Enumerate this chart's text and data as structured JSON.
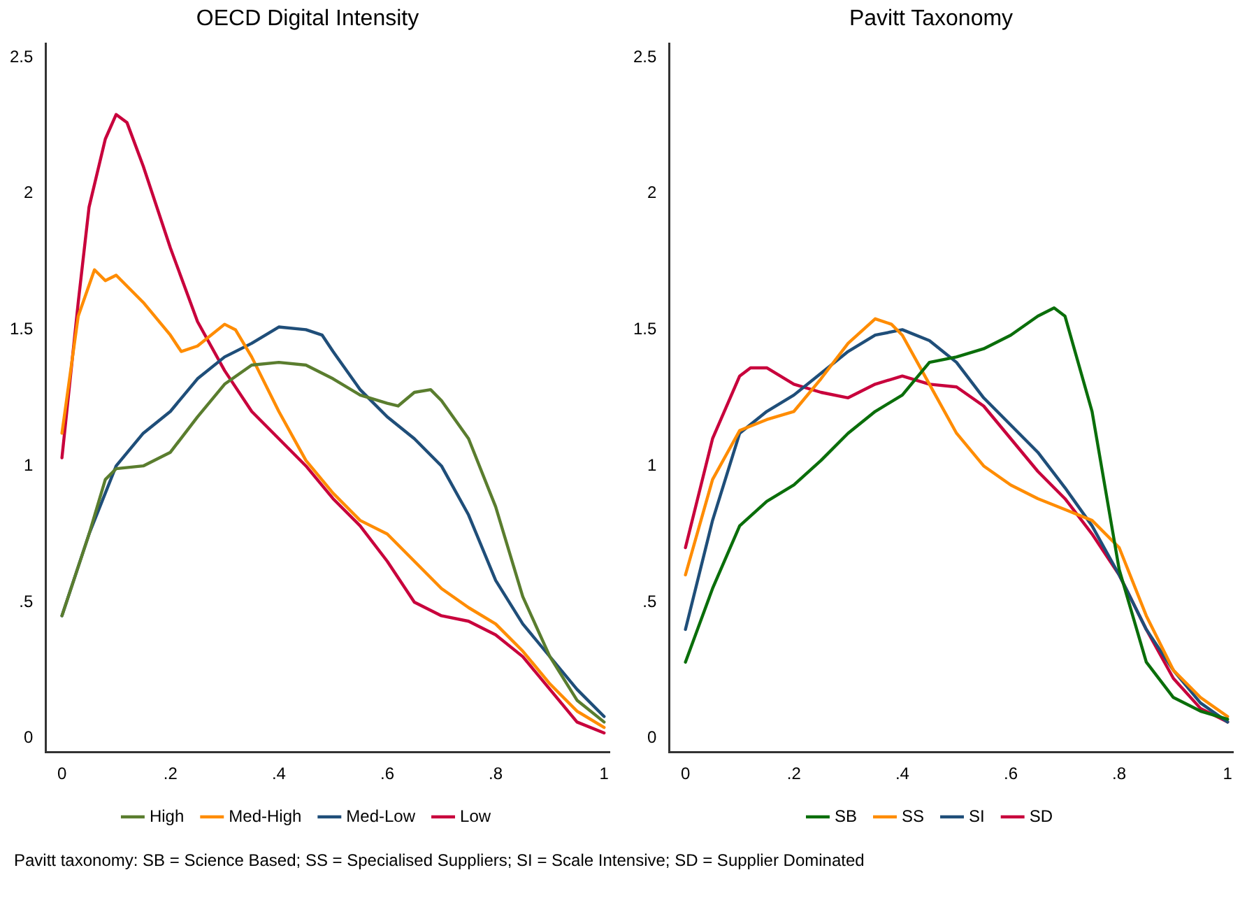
{
  "chart_data": [
    {
      "type": "line",
      "title": "OECD Digital Intensity",
      "xlim": [
        -0.03,
        1.01
      ],
      "ylim": [
        -0.05,
        2.55
      ],
      "xticks": [
        {
          "value": 0,
          "label": "0"
        },
        {
          "value": 0.2,
          "label": ".2"
        },
        {
          "value": 0.4,
          "label": ".4"
        },
        {
          "value": 0.6,
          "label": ".6"
        },
        {
          "value": 0.8,
          "label": ".8"
        },
        {
          "value": 1,
          "label": "1"
        }
      ],
      "yticks": [
        0,
        {
          "value": 0.5,
          "label": ".5"
        },
        1,
        1.5,
        2,
        2.5
      ],
      "grid": false,
      "legend": "bottom",
      "marker": "none",
      "line_style": "solid",
      "series": [
        {
          "name": "High",
          "color": "#5a7d2e",
          "x": [
            0,
            0.05,
            0.08,
            0.1,
            0.15,
            0.2,
            0.25,
            0.3,
            0.35,
            0.4,
            0.45,
            0.5,
            0.55,
            0.6,
            0.62,
            0.65,
            0.68,
            0.7,
            0.75,
            0.8,
            0.85,
            0.9,
            0.95,
            1
          ],
          "values": [
            0.45,
            0.75,
            0.95,
            0.99,
            1.0,
            1.05,
            1.18,
            1.3,
            1.37,
            1.38,
            1.37,
            1.32,
            1.26,
            1.23,
            1.22,
            1.27,
            1.28,
            1.24,
            1.1,
            0.85,
            0.52,
            0.3,
            0.14,
            0.06
          ]
        },
        {
          "name": "Med-High",
          "color": "#ff8c00",
          "x": [
            0,
            0.03,
            0.06,
            0.08,
            0.1,
            0.15,
            0.2,
            0.22,
            0.25,
            0.3,
            0.32,
            0.35,
            0.4,
            0.45,
            0.5,
            0.55,
            0.6,
            0.65,
            0.7,
            0.75,
            0.8,
            0.85,
            0.9,
            0.95,
            1
          ],
          "values": [
            1.12,
            1.55,
            1.72,
            1.68,
            1.7,
            1.6,
            1.48,
            1.42,
            1.44,
            1.52,
            1.5,
            1.4,
            1.2,
            1.02,
            0.9,
            0.8,
            0.75,
            0.65,
            0.55,
            0.48,
            0.42,
            0.32,
            0.2,
            0.1,
            0.04
          ]
        },
        {
          "name": "Med-Low",
          "color": "#1f4e79",
          "x": [
            0,
            0.05,
            0.1,
            0.15,
            0.2,
            0.25,
            0.3,
            0.35,
            0.4,
            0.45,
            0.48,
            0.5,
            0.55,
            0.6,
            0.65,
            0.7,
            0.75,
            0.8,
            0.85,
            0.9,
            0.95,
            1
          ],
          "values": [
            0.45,
            0.75,
            1.0,
            1.12,
            1.2,
            1.32,
            1.4,
            1.45,
            1.51,
            1.5,
            1.48,
            1.42,
            1.28,
            1.18,
            1.1,
            1.0,
            0.82,
            0.58,
            0.42,
            0.3,
            0.18,
            0.08
          ]
        },
        {
          "name": "Low",
          "color": "#c8003c",
          "x": [
            0,
            0.03,
            0.05,
            0.08,
            0.1,
            0.12,
            0.15,
            0.2,
            0.25,
            0.3,
            0.35,
            0.4,
            0.45,
            0.5,
            0.55,
            0.6,
            0.65,
            0.7,
            0.75,
            0.8,
            0.85,
            0.9,
            0.95,
            1
          ],
          "values": [
            1.03,
            1.6,
            1.95,
            2.2,
            2.29,
            2.26,
            2.1,
            1.8,
            1.53,
            1.35,
            1.2,
            1.1,
            1.0,
            0.88,
            0.78,
            0.65,
            0.5,
            0.45,
            0.43,
            0.38,
            0.3,
            0.18,
            0.06,
            0.02
          ]
        }
      ]
    },
    {
      "type": "line",
      "title": "Pavitt Taxonomy",
      "xlim": [
        -0.03,
        1.01
      ],
      "ylim": [
        -0.05,
        2.55
      ],
      "xticks": [
        {
          "value": 0,
          "label": "0"
        },
        {
          "value": 0.2,
          "label": ".2"
        },
        {
          "value": 0.4,
          "label": ".4"
        },
        {
          "value": 0.6,
          "label": ".6"
        },
        {
          "value": 0.8,
          "label": ".8"
        },
        {
          "value": 1,
          "label": "1"
        }
      ],
      "yticks": [
        0,
        {
          "value": 0.5,
          "label": ".5"
        },
        1,
        1.5,
        2,
        2.5
      ],
      "grid": false,
      "legend": "bottom",
      "marker": "none",
      "line_style": "solid",
      "annotations": [
        "Pavitt taxonomy: SB = Science Based; SS = Specialised Suppliers; SI = Scale Intensive; SD = Supplier Dominated"
      ],
      "series": [
        {
          "name": "SB",
          "color": "#0a6e0a",
          "x": [
            0,
            0.05,
            0.1,
            0.15,
            0.2,
            0.25,
            0.3,
            0.35,
            0.4,
            0.45,
            0.5,
            0.55,
            0.6,
            0.65,
            0.68,
            0.7,
            0.75,
            0.8,
            0.85,
            0.9,
            0.95,
            1
          ],
          "values": [
            0.28,
            0.55,
            0.78,
            0.87,
            0.93,
            1.02,
            1.12,
            1.2,
            1.26,
            1.38,
            1.4,
            1.43,
            1.48,
            1.55,
            1.58,
            1.55,
            1.2,
            0.62,
            0.28,
            0.15,
            0.1,
            0.07
          ]
        },
        {
          "name": "SS",
          "color": "#ff8c00",
          "x": [
            0,
            0.05,
            0.1,
            0.15,
            0.2,
            0.25,
            0.3,
            0.35,
            0.38,
            0.4,
            0.45,
            0.5,
            0.55,
            0.6,
            0.65,
            0.7,
            0.75,
            0.8,
            0.85,
            0.9,
            0.95,
            1
          ],
          "values": [
            0.6,
            0.95,
            1.13,
            1.17,
            1.2,
            1.32,
            1.45,
            1.54,
            1.52,
            1.48,
            1.3,
            1.12,
            1.0,
            0.93,
            0.88,
            0.84,
            0.8,
            0.7,
            0.45,
            0.25,
            0.15,
            0.08
          ]
        },
        {
          "name": "SI",
          "color": "#1f4e79",
          "x": [
            0,
            0.05,
            0.1,
            0.15,
            0.2,
            0.25,
            0.3,
            0.35,
            0.4,
            0.45,
            0.5,
            0.55,
            0.6,
            0.65,
            0.7,
            0.75,
            0.8,
            0.85,
            0.9,
            0.95,
            1
          ],
          "values": [
            0.4,
            0.8,
            1.12,
            1.2,
            1.26,
            1.34,
            1.42,
            1.48,
            1.5,
            1.46,
            1.38,
            1.25,
            1.15,
            1.05,
            0.92,
            0.78,
            0.6,
            0.4,
            0.25,
            0.13,
            0.06
          ]
        },
        {
          "name": "SD",
          "color": "#c8003c",
          "x": [
            0,
            0.05,
            0.1,
            0.12,
            0.15,
            0.2,
            0.25,
            0.3,
            0.35,
            0.4,
            0.45,
            0.5,
            0.55,
            0.6,
            0.65,
            0.7,
            0.75,
            0.8,
            0.85,
            0.9,
            0.95,
            1
          ],
          "values": [
            0.7,
            1.1,
            1.33,
            1.36,
            1.36,
            1.3,
            1.27,
            1.25,
            1.3,
            1.33,
            1.3,
            1.29,
            1.22,
            1.1,
            0.98,
            0.88,
            0.75,
            0.6,
            0.4,
            0.22,
            0.11,
            0.06
          ]
        }
      ]
    }
  ]
}
